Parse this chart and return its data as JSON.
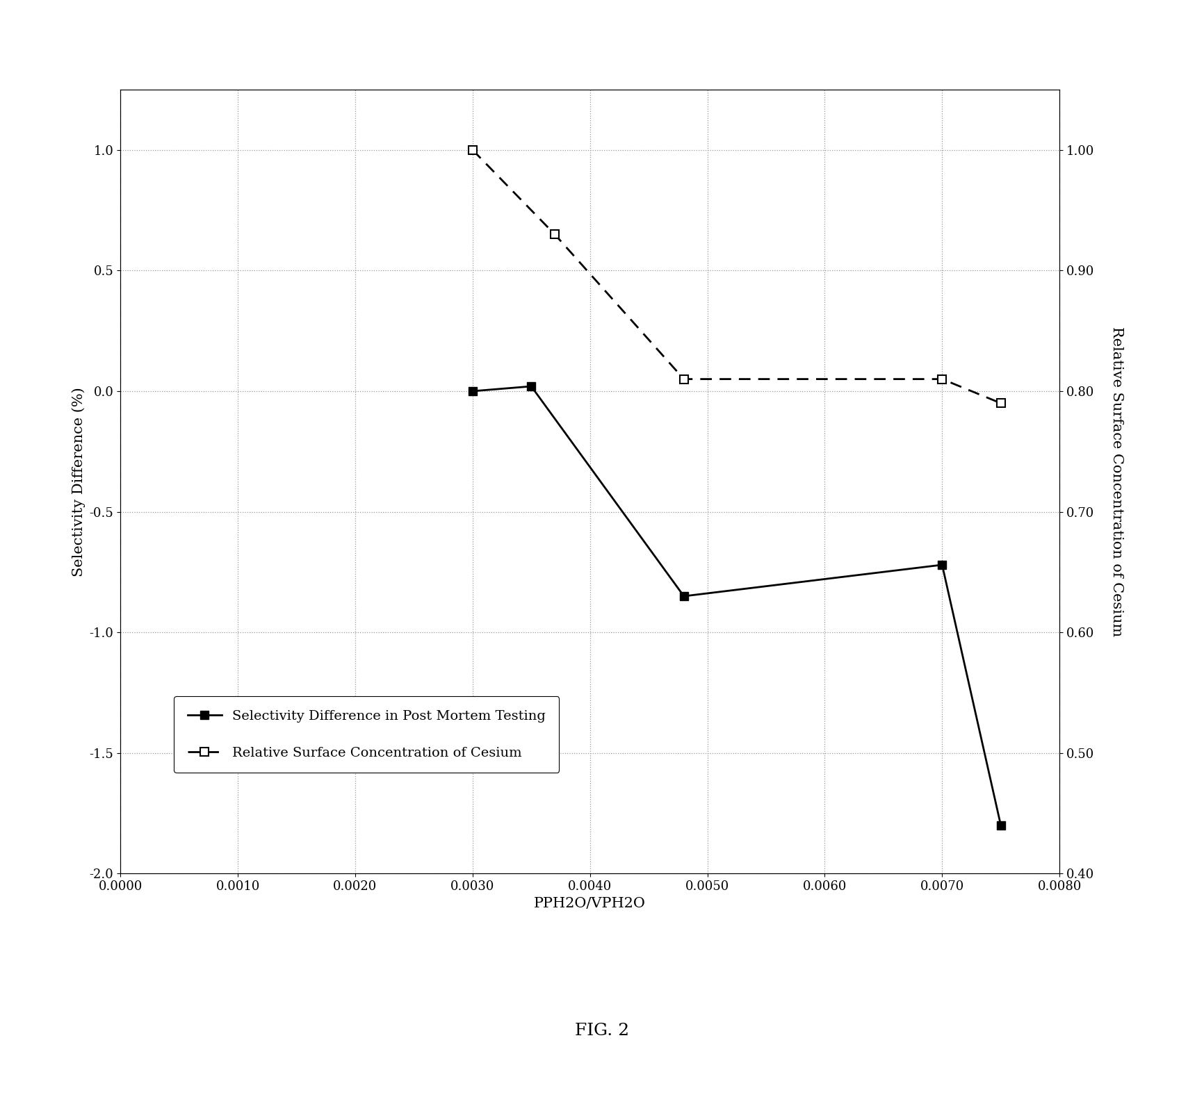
{
  "title": "FIG. 2",
  "xlabel": "PPH2O/VPH2O",
  "ylabel_left": "Selectivity Difference (%)",
  "ylabel_right": "Relative Surface Concentration of Cesium",
  "xlim": [
    0.0,
    0.008
  ],
  "ylim_left": [
    -2.0,
    1.25
  ],
  "ylim_right": [
    0.4,
    1.05
  ],
  "xticks": [
    0.0,
    0.001,
    0.002,
    0.003,
    0.004,
    0.005,
    0.006,
    0.007,
    0.008
  ],
  "yticks_left": [
    -2.0,
    -1.5,
    -1.0,
    -0.5,
    0.0,
    0.5,
    1.0
  ],
  "yticks_right": [
    0.4,
    0.5,
    0.6,
    0.7,
    0.8,
    0.9,
    1.0
  ],
  "series1_x": [
    0.003,
    0.0035,
    0.0048,
    0.007,
    0.0075
  ],
  "series1_y": [
    0.0,
    0.02,
    -0.85,
    -0.72,
    -1.8
  ],
  "series2_x": [
    0.003,
    0.0037,
    0.0048,
    0.007,
    0.0075
  ],
  "series2_y": [
    1.0,
    0.93,
    0.81,
    0.81,
    0.79
  ],
  "series1_label": "Selectivity Difference in Post Mortem Testing",
  "series2_label": "Relative Surface Concentration of Cesium",
  "line_color": "#000000",
  "background_color": "#ffffff",
  "grid_color": "#999999",
  "legend_fontsize": 14,
  "axis_label_fontsize": 15,
  "tick_fontsize": 13,
  "title_fontsize": 18
}
